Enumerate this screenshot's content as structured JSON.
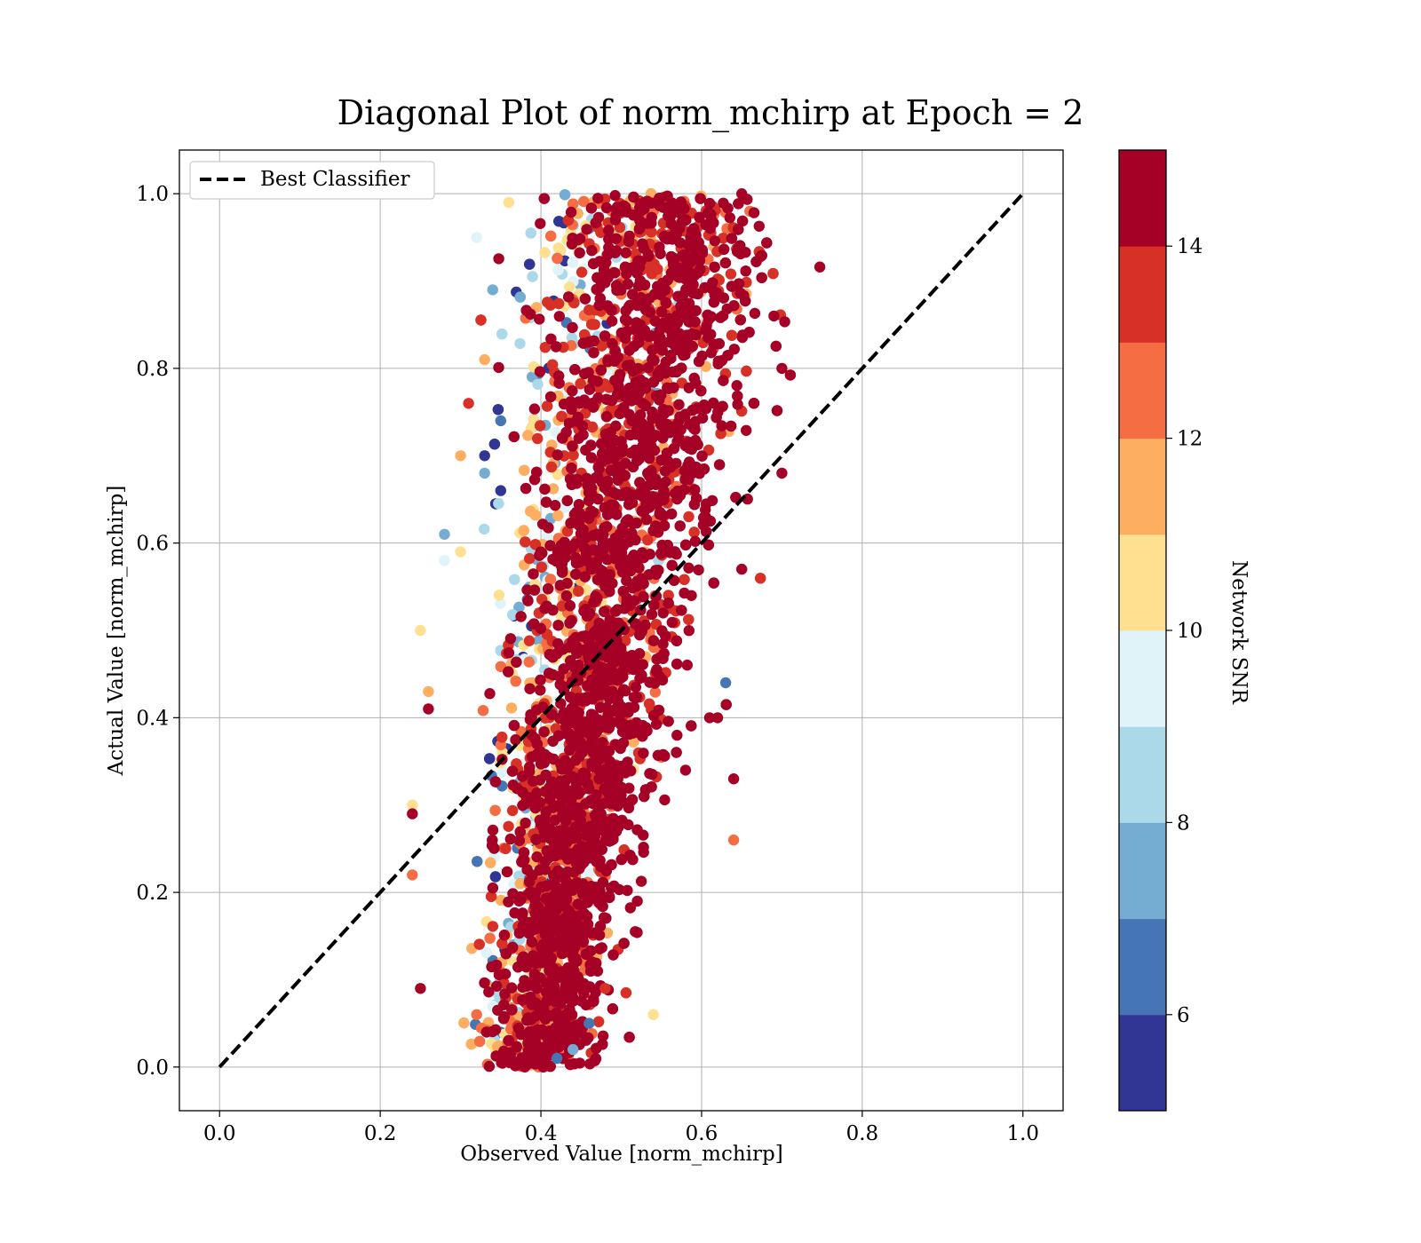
{
  "chart_data": {
    "type": "scatter",
    "title": "Diagonal Plot of norm_mchirp at Epoch = 2",
    "xlabel": "Observed Value [norm_mchirp]",
    "ylabel": "Actual Value [norm_mchirp]",
    "xlim": [
      -0.05,
      1.05
    ],
    "ylim": [
      -0.05,
      1.05
    ],
    "xticks": [
      "0.0",
      "0.2",
      "0.4",
      "0.6",
      "0.8",
      "1.0"
    ],
    "yticks": [
      "0.0",
      "0.2",
      "0.4",
      "0.6",
      "0.8",
      "1.0"
    ],
    "grid": true,
    "legend": {
      "placement": "top-left",
      "entries": [
        "Best Classifier"
      ]
    },
    "reference_line": {
      "label": "Best Classifier",
      "x": [
        0.0,
        1.0
      ],
      "y": [
        0.0,
        1.0
      ],
      "style": "dashed",
      "color": "#000000"
    },
    "colorbar": {
      "label": "Network SNR",
      "range": [
        5,
        15
      ],
      "ticks": [
        "6",
        "8",
        "10",
        "12",
        "14"
      ],
      "colors": [
        "#313695",
        "#4575b4",
        "#74add1",
        "#abd9e9",
        "#e0f3f8",
        "#fee090",
        "#fdae61",
        "#f46d43",
        "#d73027",
        "#a50026"
      ]
    },
    "series": [
      {
        "values": [
          [
            0.36,
            0.99,
            10
          ],
          [
            0.32,
            0.95,
            9
          ],
          [
            0.34,
            0.89,
            7
          ],
          [
            0.33,
            0.81,
            11
          ],
          [
            0.31,
            0.76,
            13
          ],
          [
            0.35,
            0.74,
            6
          ],
          [
            0.3,
            0.7,
            11
          ],
          [
            0.33,
            0.7,
            5
          ],
          [
            0.33,
            0.68,
            7
          ],
          [
            0.35,
            0.66,
            5
          ],
          [
            0.28,
            0.61,
            7
          ],
          [
            0.28,
            0.58,
            9
          ],
          [
            0.3,
            0.59,
            10
          ],
          [
            0.25,
            0.5,
            10
          ],
          [
            0.26,
            0.43,
            11
          ],
          [
            0.26,
            0.41,
            14
          ],
          [
            0.24,
            0.3,
            10
          ],
          [
            0.24,
            0.29,
            15
          ],
          [
            0.24,
            0.22,
            12
          ],
          [
            0.25,
            0.09,
            14
          ],
          [
            0.32,
            0.06,
            12
          ],
          [
            0.54,
            0.06,
            10
          ],
          [
            0.64,
            0.26,
            12
          ],
          [
            0.64,
            0.33,
            14
          ],
          [
            0.63,
            0.44,
            6
          ],
          [
            0.65,
            0.57,
            14
          ],
          [
            0.7,
            0.68,
            14
          ],
          [
            0.7,
            0.8,
            15
          ],
          [
            0.69,
            0.86,
            15
          ],
          [
            0.65,
            1.0,
            15
          ],
          [
            0.62,
            0.4,
            15
          ],
          [
            0.61,
            0.4,
            15
          ],
          [
            0.58,
            0.34,
            15
          ],
          [
            0.52,
            0.19,
            15
          ],
          [
            0.48,
            0.09,
            13
          ],
          [
            0.46,
            0.05,
            6
          ],
          [
            0.44,
            0.02,
            7
          ],
          [
            0.4,
            0.01,
            15
          ],
          [
            0.38,
            0.0,
            15
          ],
          [
            0.42,
            0.01,
            6
          ]
        ]
      }
    ]
  }
}
